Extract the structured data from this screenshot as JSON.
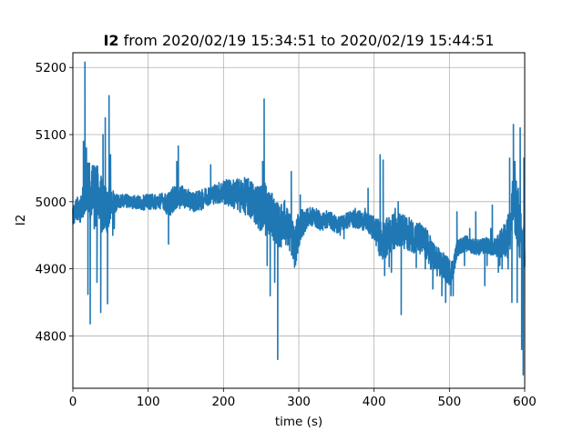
{
  "chart_data": {
    "type": "line",
    "title": {
      "bold_part": "I2",
      "rest": " from 2020/02/19 15:34:51 to 2020/02/19 15:44:51"
    },
    "xlabel": "time (s)",
    "ylabel": "I2",
    "xlim": [
      0,
      600
    ],
    "ylim": [
      4722,
      5222
    ],
    "xticks": [
      0,
      100,
      200,
      300,
      400,
      500,
      600
    ],
    "yticks": [
      4800,
      4900,
      5000,
      5100,
      5200
    ],
    "grid": true,
    "series": [
      {
        "color": "#1f77b4",
        "baseline": [
          [
            0,
            4975
          ],
          [
            5,
            4990
          ],
          [
            10,
            4985
          ],
          [
            15,
            5010
          ],
          [
            20,
            5020
          ],
          [
            25,
            5015
          ],
          [
            30,
            5005
          ],
          [
            35,
            5000
          ],
          [
            40,
            4995
          ],
          [
            45,
            4985
          ],
          [
            50,
            4998
          ],
          [
            60,
            5000
          ],
          [
            70,
            5002
          ],
          [
            80,
            5000
          ],
          [
            90,
            4998
          ],
          [
            100,
            5000
          ],
          [
            110,
            5000
          ],
          [
            120,
            5002
          ],
          [
            125,
            4995
          ],
          [
            130,
            5000
          ],
          [
            140,
            5010
          ],
          [
            150,
            5005
          ],
          [
            160,
            5000
          ],
          [
            170,
            5002
          ],
          [
            180,
            5010
          ],
          [
            190,
            5012
          ],
          [
            200,
            5015
          ],
          [
            210,
            5012
          ],
          [
            220,
            5010
          ],
          [
            230,
            5008
          ],
          [
            240,
            5000
          ],
          [
            250,
            4990
          ],
          [
            255,
            4998
          ],
          [
            260,
            4985
          ],
          [
            265,
            4978
          ],
          [
            270,
            4970
          ],
          [
            275,
            4960
          ],
          [
            280,
            4975
          ],
          [
            285,
            4960
          ],
          [
            290,
            4950
          ],
          [
            295,
            4930
          ],
          [
            300,
            4960
          ],
          [
            310,
            4975
          ],
          [
            320,
            4978
          ],
          [
            330,
            4970
          ],
          [
            340,
            4975
          ],
          [
            350,
            4965
          ],
          [
            360,
            4970
          ],
          [
            370,
            4975
          ],
          [
            380,
            4973
          ],
          [
            390,
            4970
          ],
          [
            400,
            4960
          ],
          [
            405,
            4950
          ],
          [
            410,
            4940
          ],
          [
            420,
            4950
          ],
          [
            430,
            4960
          ],
          [
            440,
            4955
          ],
          [
            450,
            4950
          ],
          [
            460,
            4945
          ],
          [
            470,
            4935
          ],
          [
            480,
            4915
          ],
          [
            490,
            4905
          ],
          [
            500,
            4895
          ],
          [
            505,
            4900
          ],
          [
            510,
            4930
          ],
          [
            520,
            4938
          ],
          [
            530,
            4935
          ],
          [
            540,
            4932
          ],
          [
            550,
            4935
          ],
          [
            560,
            4930
          ],
          [
            570,
            4938
          ],
          [
            575,
            4945
          ],
          [
            580,
            4955
          ],
          [
            585,
            5000
          ],
          [
            590,
            4990
          ],
          [
            595,
            4940
          ],
          [
            600,
            4930
          ]
        ],
        "noise": [
          [
            0,
            15
          ],
          [
            10,
            20
          ],
          [
            30,
            55
          ],
          [
            50,
            25
          ],
          [
            60,
            10
          ],
          [
            120,
            12
          ],
          [
            130,
            20
          ],
          [
            150,
            15
          ],
          [
            190,
            15
          ],
          [
            250,
            35
          ],
          [
            300,
            30
          ],
          [
            310,
            15
          ],
          [
            360,
            12
          ],
          [
            395,
            15
          ],
          [
            410,
            30
          ],
          [
            440,
            25
          ],
          [
            470,
            25
          ],
          [
            500,
            20
          ],
          [
            510,
            12
          ],
          [
            560,
            12
          ],
          [
            575,
            30
          ],
          [
            590,
            50
          ],
          [
            600,
            40
          ]
        ],
        "spikes": [
          [
            16,
            5208
          ],
          [
            14,
            5090
          ],
          [
            18,
            5080
          ],
          [
            20,
            4862
          ],
          [
            23,
            4818
          ],
          [
            25,
            5040
          ],
          [
            28,
            5030
          ],
          [
            32,
            4880
          ],
          [
            37,
            4835
          ],
          [
            40,
            5100
          ],
          [
            43,
            5125
          ],
          [
            46,
            4848
          ],
          [
            48,
            5158
          ],
          [
            50,
            5070
          ],
          [
            53,
            4950
          ],
          [
            55,
            4960
          ],
          [
            127,
            4937
          ],
          [
            138,
            5060
          ],
          [
            140,
            5083
          ],
          [
            142,
            4990
          ],
          [
            183,
            5055
          ],
          [
            233,
            5000
          ],
          [
            245,
            4980
          ],
          [
            252,
            5060
          ],
          [
            254,
            5153
          ],
          [
            256,
            4950
          ],
          [
            258,
            4905
          ],
          [
            262,
            4860
          ],
          [
            265,
            4960
          ],
          [
            268,
            4880
          ],
          [
            272,
            4765
          ],
          [
            274,
            4950
          ],
          [
            277,
            4960
          ],
          [
            290,
            5045
          ],
          [
            294,
            4920
          ],
          [
            302,
            5010
          ],
          [
            330,
            4960
          ],
          [
            355,
            4950
          ],
          [
            360,
            4945
          ],
          [
            375,
            4990
          ],
          [
            378,
            4985
          ],
          [
            385,
            4970
          ],
          [
            388,
            4990
          ],
          [
            392,
            5020
          ],
          [
            398,
            4950
          ],
          [
            404,
            4950
          ],
          [
            408,
            5070
          ],
          [
            412,
            5062
          ],
          [
            414,
            4890
          ],
          [
            420,
            4903
          ],
          [
            423,
            4895
          ],
          [
            428,
            4990
          ],
          [
            432,
            5000
          ],
          [
            436,
            4832
          ],
          [
            440,
            4930
          ],
          [
            456,
            4902
          ],
          [
            460,
            4950
          ],
          [
            468,
            4900
          ],
          [
            475,
            4900
          ],
          [
            478,
            4870
          ],
          [
            490,
            4860
          ],
          [
            495,
            4850
          ],
          [
            502,
            4860
          ],
          [
            505,
            4860
          ],
          [
            510,
            4985
          ],
          [
            520,
            4905
          ],
          [
            527,
            4960
          ],
          [
            535,
            4985
          ],
          [
            545,
            4940
          ],
          [
            547,
            4875
          ],
          [
            550,
            4905
          ],
          [
            555,
            4960
          ],
          [
            557,
            4995
          ],
          [
            560,
            4945
          ],
          [
            565,
            4895
          ],
          [
            567,
            4905
          ],
          [
            570,
            4900
          ],
          [
            578,
            4900
          ],
          [
            580,
            5065
          ],
          [
            583,
            4850
          ],
          [
            585,
            5115
          ],
          [
            587,
            5060
          ],
          [
            590,
            4850
          ],
          [
            594,
            5110
          ],
          [
            596,
            4780
          ],
          [
            598,
            4742
          ],
          [
            599,
            5065
          ]
        ]
      }
    ]
  }
}
